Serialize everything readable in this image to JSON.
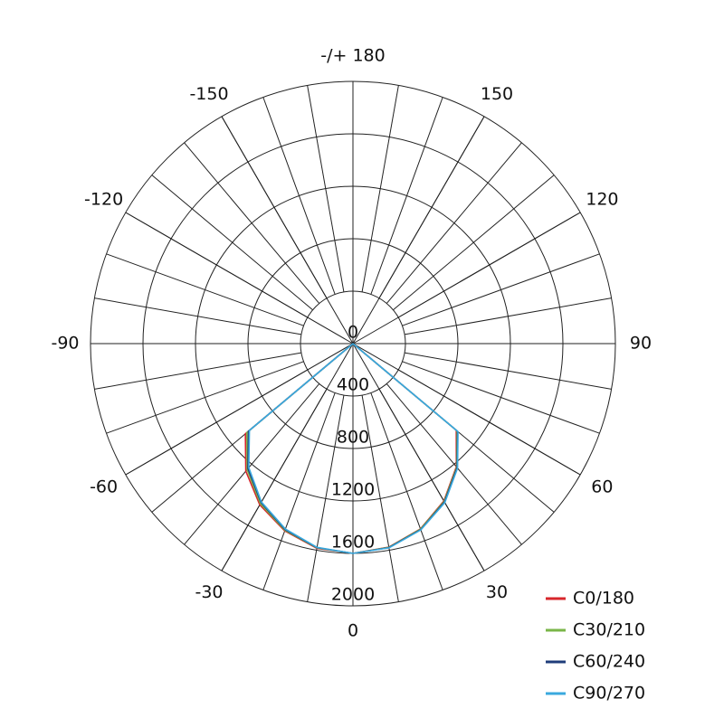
{
  "chart_data": {
    "type": "polar",
    "angles": [
      -60,
      -50,
      -40,
      -30,
      -20,
      -10,
      0,
      10,
      20,
      30,
      40,
      50,
      60
    ],
    "angle_ticks": [
      0,
      30,
      60,
      90,
      120,
      150,
      {
        "value": 180,
        "label": "-/+ 180"
      },
      -150,
      -120,
      -90,
      -60,
      -30
    ],
    "rlim": [
      0,
      2000
    ],
    "rticks": [
      0,
      400,
      800,
      1200,
      1600,
      2000
    ],
    "series": [
      {
        "name": "C0/180",
        "color": "#d7262b",
        "values": [
          0,
          1070,
          1270,
          1420,
          1520,
          1585,
          1600,
          1576,
          1504,
          1386,
          1226,
          1028,
          0
        ]
      },
      {
        "name": "C30/210",
        "color": "#7ab648",
        "values": [
          0,
          1055,
          1255,
          1410,
          1515,
          1582,
          1600,
          1578,
          1506,
          1390,
          1230,
          1035,
          0
        ]
      },
      {
        "name": "C60/240",
        "color": "#1f3c7a",
        "values": [
          0,
          1040,
          1245,
          1400,
          1510,
          1580,
          1600,
          1580,
          1510,
          1395,
          1235,
          1040,
          0
        ]
      },
      {
        "name": "C90/270",
        "color": "#3aa9de",
        "values": [
          0,
          1030,
          1235,
          1395,
          1505,
          1578,
          1600,
          1582,
          1512,
          1400,
          1240,
          1045,
          0
        ]
      }
    ],
    "legend": "bottom-right"
  }
}
